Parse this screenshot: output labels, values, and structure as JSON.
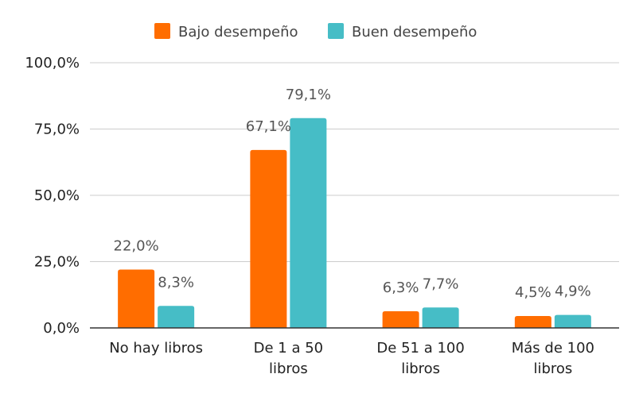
{
  "chart_data": {
    "type": "bar",
    "categories": [
      [
        "No hay libros"
      ],
      [
        "De 1 a 50",
        "libros"
      ],
      [
        "De 51 a 100",
        "libros"
      ],
      [
        "Más de 100",
        "libros"
      ]
    ],
    "series": [
      {
        "name": "Bajo desempeño",
        "color": "#ff6d00",
        "values": [
          22.0,
          67.1,
          6.3,
          4.5
        ],
        "labels": [
          "22,0%",
          "67,1%",
          "6,3%",
          "4,5%"
        ]
      },
      {
        "name": "Buen desempeño",
        "color": "#46bdc6",
        "values": [
          8.3,
          79.1,
          7.7,
          4.9
        ],
        "labels": [
          "8,3%",
          "79,1%",
          "7,7%",
          "4,9%"
        ]
      }
    ],
    "yticks": [
      "0,0%",
      "25,0%",
      "50,0%",
      "75,0%",
      "100,0%"
    ],
    "ytick_values": [
      0,
      25,
      50,
      75,
      100
    ],
    "ylim": [
      0,
      100
    ],
    "grid": true,
    "legend_position": "top-center"
  }
}
